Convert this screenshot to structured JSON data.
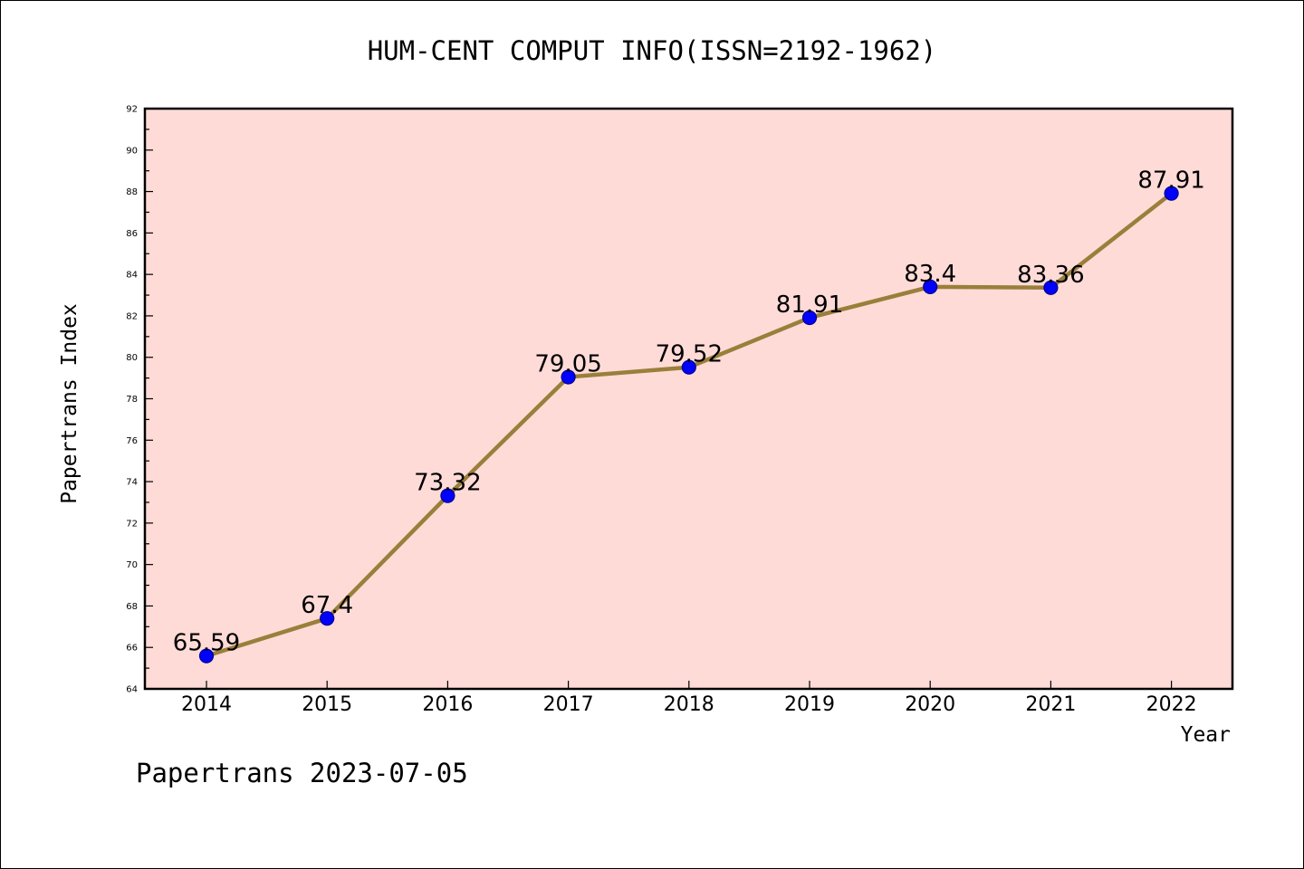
{
  "chart_data": {
    "type": "line",
    "title": "HUM-CENT COMPUT INFO(ISSN=2192-1962)",
    "xlabel": "Year",
    "ylabel": "Papertrans Index",
    "categories": [
      "2014",
      "2015",
      "2016",
      "2017",
      "2018",
      "2019",
      "2020",
      "2021",
      "2022"
    ],
    "series": [
      {
        "values": [
          65.59,
          67.4,
          73.32,
          79.05,
          79.52,
          81.91,
          83.4,
          83.36,
          87.91
        ],
        "labels": [
          "65.59",
          "67.4",
          "73.32",
          "79.05",
          "79.52",
          "81.91",
          "83.4",
          "83.36",
          "87.91"
        ]
      }
    ],
    "ylim": [
      64,
      92
    ],
    "yticks": [
      "64",
      "66",
      "68",
      "70",
      "72",
      "74",
      "76",
      "78",
      "80",
      "82",
      "84",
      "86",
      "88",
      "90",
      "92"
    ],
    "grid": false,
    "legend": "none",
    "colors": {
      "plot_background": "#FFDBD8",
      "line": "#9A7F3A",
      "marker": "#0000FF",
      "marker_edge": "#00008B"
    }
  },
  "footer": {
    "text": "Papertrans 2023-07-05"
  }
}
